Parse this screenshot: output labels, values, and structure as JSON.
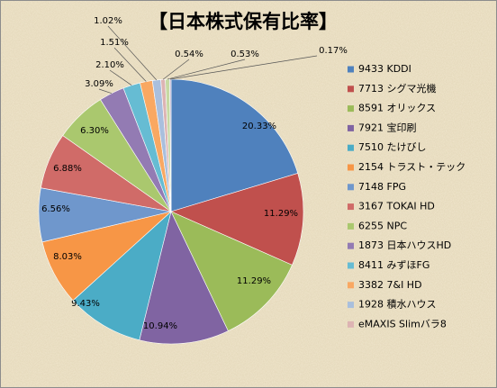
{
  "chart_data": {
    "type": "pie",
    "title": "【日本株式保有比率】",
    "categories": [
      "9433 KDDI",
      "7713 シグマ光機",
      "8591 オリックス",
      "7921 宝印刷",
      "7510 たけびし",
      "2154 トラスト・テック",
      "7148 FPG",
      "3167 TOKAI HD",
      "6255 NPC",
      "1873 日本ハウスHD",
      "8411 みずほFG",
      "3382 7&I HD",
      "1928 積水ハウス",
      "eMAXIS Slimバラ8",
      null,
      null
    ],
    "values": [
      20.33,
      11.29,
      11.29,
      10.94,
      9.43,
      8.03,
      6.56,
      6.88,
      6.3,
      3.09,
      2.1,
      1.51,
      1.02,
      0.54,
      0.53,
      0.17
    ],
    "value_labels": [
      "20.33%",
      "11.29%",
      "11.29%",
      "10.94%",
      "9.43%",
      "8.03%",
      "6.56%",
      "6.88%",
      "6.30%",
      "3.09%",
      "2.10%",
      "1.51%",
      "1.02%",
      "0.54%",
      "0.53%",
      "0.17%"
    ],
    "colors": [
      "#4F81BD",
      "#C0504D",
      "#9BBB59",
      "#8064A2",
      "#4BACC6",
      "#F79646",
      "#6F97CC",
      "#D06B68",
      "#AAC86E",
      "#937BB3",
      "#66BCD3",
      "#F9A862",
      "#A9BFDD",
      "#DDB4B3",
      "#C6D9A3",
      "#BBAFCC"
    ],
    "legend": "right"
  }
}
